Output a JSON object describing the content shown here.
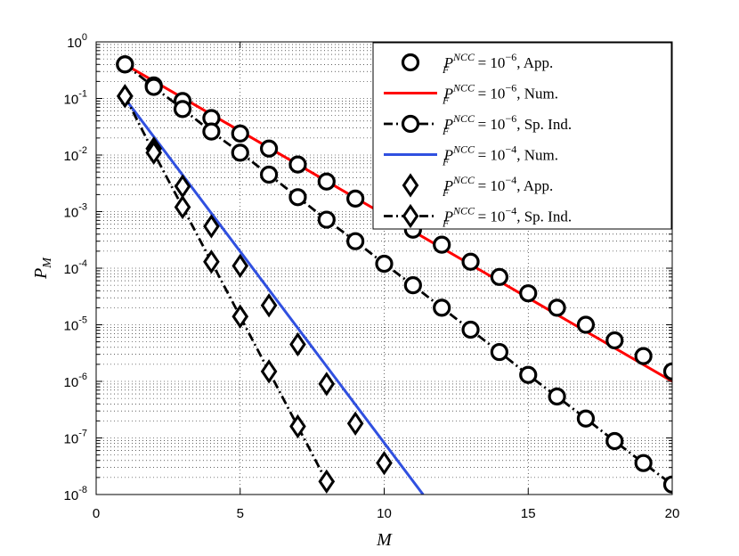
{
  "chart_data": {
    "type": "line",
    "title": "",
    "xlabel": "M",
    "ylabel": "P_M",
    "xlim": [
      0,
      20
    ],
    "ylim_log10": [
      -8,
      0
    ],
    "yscale": "log",
    "grid": true,
    "legend_placement": "top-right",
    "x_ticks": [
      0,
      5,
      10,
      15,
      20
    ],
    "y_tick_exponents": [
      0,
      -1,
      -2,
      -3,
      -4,
      -5,
      -6,
      -7,
      -8
    ],
    "series": [
      {
        "name": "P_F^{NCC} = 10^{-6}, App.",
        "style": "markers",
        "marker": "circle",
        "color": "#000000",
        "x": [
          1,
          2,
          3,
          4,
          5,
          6,
          7,
          8,
          9,
          10,
          11,
          12,
          13,
          14,
          15,
          16,
          17,
          18,
          19,
          20
        ],
        "y": [
          0.4,
          0.17,
          0.09,
          0.045,
          0.024,
          0.013,
          0.0068,
          0.0034,
          0.0017,
          0.001,
          0.00048,
          0.00026,
          0.00013,
          7e-05,
          3.6e-05,
          2e-05,
          1e-05,
          5.3e-06,
          2.8e-06,
          1.5e-06
        ]
      },
      {
        "name": "P_F^{NCC} = 10^{-6}, Num.",
        "style": "solid",
        "marker": "none",
        "color": "#ff0000",
        "x": [
          1,
          20
        ],
        "y": [
          0.4,
          1e-06
        ]
      },
      {
        "name": "P_F^{NCC} = 10^{-6}, Sp. Ind.",
        "style": "dashdot",
        "marker": "circle",
        "color": "#000000",
        "x": [
          1,
          2,
          3,
          4,
          5,
          6,
          7,
          8,
          9,
          10,
          11,
          12,
          13,
          14,
          15,
          16,
          17,
          18,
          19,
          20
        ],
        "y": [
          0.4,
          0.16,
          0.065,
          0.026,
          0.011,
          0.0045,
          0.0018,
          0.00072,
          0.0003,
          0.00012,
          5e-05,
          2e-05,
          8.2e-06,
          3.3e-06,
          1.3e-06,
          5.4e-07,
          2.2e-07,
          8.8e-08,
          3.6e-08,
          1.5e-08
        ]
      },
      {
        "name": "P_F^{NCC} = 10^{-4}, Num.",
        "style": "solid",
        "marker": "none",
        "color": "#3050e0",
        "x": [
          1,
          11.35
        ],
        "y": [
          0.1,
          1e-08
        ]
      },
      {
        "name": "P_F^{NCC} = 10^{-4}, App.",
        "style": "markers",
        "marker": "diamond",
        "color": "#000000",
        "x": [
          1,
          2,
          3,
          4,
          5,
          6,
          7,
          8,
          9,
          10
        ],
        "y": [
          0.11,
          0.013,
          0.0028,
          0.00055,
          0.00011,
          2.2e-05,
          4.5e-06,
          9e-07,
          1.8e-07,
          3.6e-08
        ]
      },
      {
        "name": "P_F^{NCC} = 10^{-4}, Sp. Ind.",
        "style": "dashdot",
        "marker": "diamond",
        "color": "#000000",
        "x": [
          1,
          2,
          3,
          4,
          5,
          6,
          7,
          8
        ],
        "y": [
          0.11,
          0.011,
          0.0012,
          0.00013,
          1.4e-05,
          1.5e-06,
          1.6e-07,
          1.7e-08
        ]
      }
    ],
    "legend_entries": [
      {
        "base": "P",
        "sub": "F",
        "sup": "NCC",
        "rhs": " = 10",
        "exp": "−6",
        "suffix": ", App."
      },
      {
        "base": "P",
        "sub": "F",
        "sup": "NCC",
        "rhs": " = 10",
        "exp": "−6",
        "suffix": ", Num."
      },
      {
        "base": "P",
        "sub": "F",
        "sup": "NCC",
        "rhs": " = 10",
        "exp": "−6",
        "suffix": ", Sp. Ind."
      },
      {
        "base": "P",
        "sub": "F",
        "sup": "NCC",
        "rhs": " = 10",
        "exp": "−4",
        "suffix": ", Num."
      },
      {
        "base": "P",
        "sub": "F",
        "sup": "NCC",
        "rhs": " = 10",
        "exp": "−4",
        "suffix": ", App."
      },
      {
        "base": "P",
        "sub": "F",
        "sup": "NCC",
        "rhs": " = 10",
        "exp": "−4",
        "suffix": ", Sp. Ind."
      }
    ],
    "axis_text": {
      "x_main": "M",
      "y_main": "P",
      "y_sub": "M",
      "tick_base": "10"
    }
  }
}
